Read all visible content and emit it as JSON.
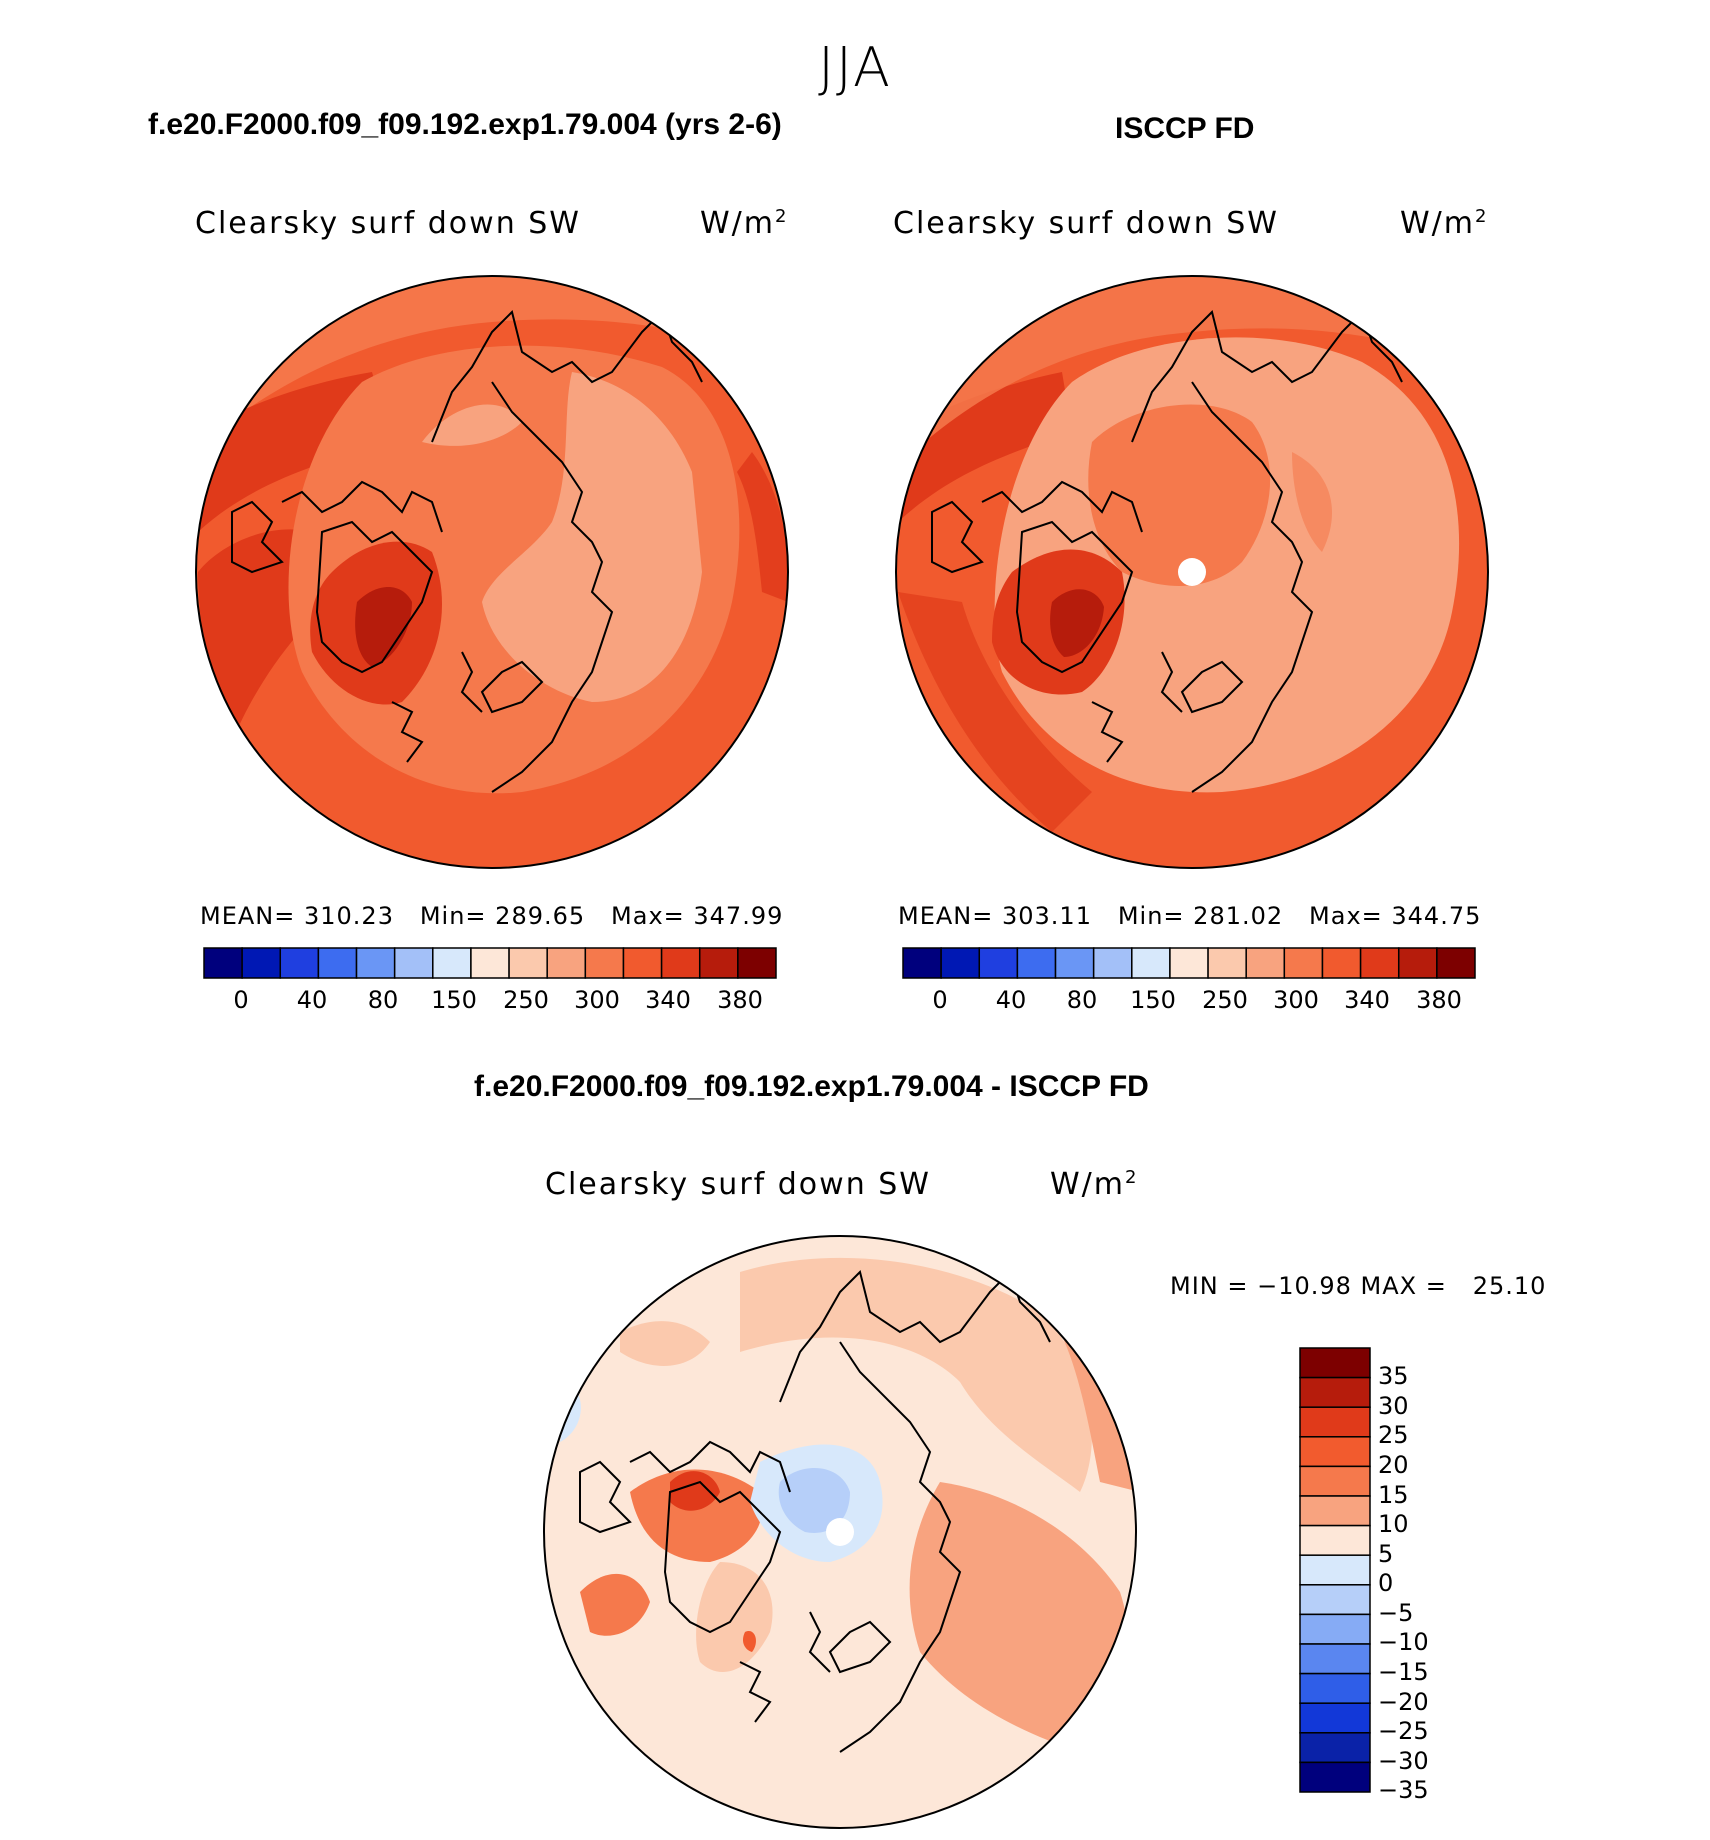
{
  "season": "JJA",
  "panels": [
    {
      "id": "model",
      "title": "f.e20.F2000.f09_f09.192.exp1.79.004 (yrs 2-6)",
      "field": "Clearsky surf down SW",
      "units_base": "W/m",
      "units_exp": "2",
      "stats": "MEAN= 310.23   Min= 289.65   Max= 347.99",
      "colorbar_ticks": [
        "0",
        "40",
        "80",
        "150",
        "250",
        "300",
        "340",
        "380"
      ]
    },
    {
      "id": "obs",
      "title": "ISCCP FD",
      "field": "Clearsky surf down SW",
      "units_base": "W/m",
      "units_exp": "2",
      "stats": "MEAN= 303.11   Min= 281.02   Max= 344.75",
      "colorbar_ticks": [
        "0",
        "40",
        "80",
        "150",
        "250",
        "300",
        "340",
        "380"
      ]
    }
  ],
  "diff": {
    "title": "f.e20.F2000.f09_f09.192.exp1.79.004 - ISCCP FD",
    "field": "Clearsky surf down SW",
    "units_base": "W/m",
    "units_exp": "2",
    "stats": "MIN = −10.98 MAX =   25.10",
    "colorbar_ticks": [
      "35",
      "30",
      "25",
      "20",
      "15",
      "10",
      "5",
      "0",
      "−5",
      "−10",
      "−15",
      "−20",
      "−25",
      "−30",
      "−35"
    ]
  },
  "colors": {
    "abs_scale": [
      "#00007d",
      "#0018b4",
      "#1f3fe0",
      "#3d6cf0",
      "#6a96f5",
      "#a3c0f8",
      "#d7e8fb",
      "#fde7d8",
      "#fbc9ad",
      "#f8a37f",
      "#f5794c",
      "#f15a2e",
      "#e03a1a",
      "#b61c0c",
      "#7d0000"
    ],
    "diff_scale": [
      "#7d0000",
      "#b61c0c",
      "#e03a1a",
      "#f25b2e",
      "#f5794c",
      "#f8a37f",
      "#fde7d8",
      "#d7e8fb",
      "#b6cff9",
      "#86abf5",
      "#5a86f0",
      "#2f5ee8",
      "#1238d8",
      "#0a22a8",
      "#00007d"
    ]
  }
}
